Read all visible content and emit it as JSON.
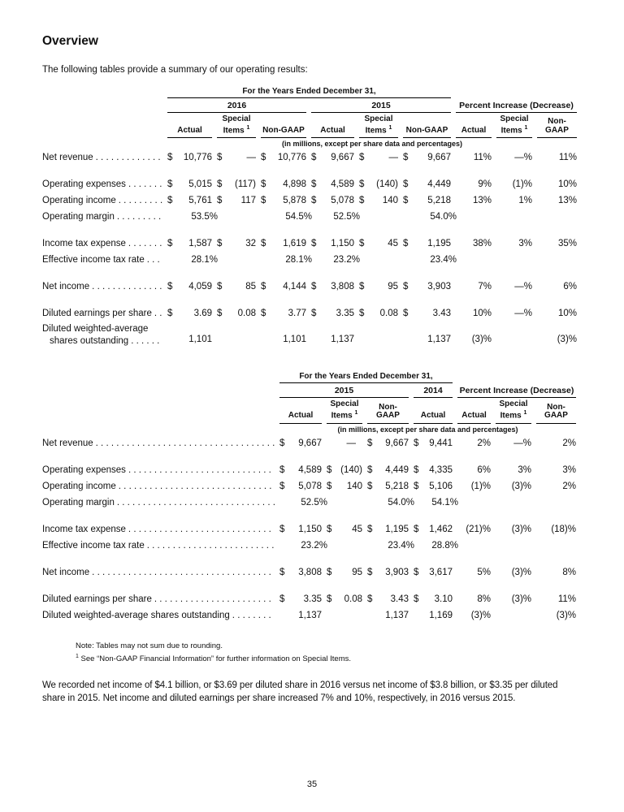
{
  "page": {
    "heading": "Overview",
    "intro": "The following tables provide a summary of our operating results:",
    "note_line1": "Note: Tables may not sum due to rounding.",
    "note2_sup": "1",
    "note_line2": "See “Non-GAAP Financial Information” for further information on Special Items.",
    "paragraph": "We recorded net income of $4.1 billion, or $3.69 per diluted share in 2016 versus net income of $3.8 billion, or $3.35 per diluted share in 2015.  Net income and diluted earnings per share increased 7% and 10%, respectively, in 2016 versus 2015.",
    "page_number": "35"
  },
  "table1": {
    "span_header": "For the Years Ended December 31,",
    "groups": [
      "2016",
      "2015",
      "Percent Increase (Decrease)"
    ],
    "col_headers": [
      {
        "lines": [
          "Actual"
        ]
      },
      {
        "lines": [
          "Special",
          "Items"
        ],
        "sup": "1"
      },
      {
        "lines": [
          "Non-GAAP"
        ]
      },
      {
        "lines": [
          "Actual"
        ]
      },
      {
        "lines": [
          "Special",
          "Items"
        ],
        "sup": "1"
      },
      {
        "lines": [
          "Non-GAAP"
        ]
      },
      {
        "lines": [
          "Actual"
        ]
      },
      {
        "lines": [
          "Special",
          "Items"
        ],
        "sup": "1"
      },
      {
        "lines": [
          "Non-",
          "GAAP"
        ]
      }
    ],
    "units_note": "(in millions, except per share data and percentages)",
    "rows": [
      {
        "label": "Net revenue",
        "cells": [
          [
            "$",
            "10,776"
          ],
          [
            "$",
            "—"
          ],
          [
            "$",
            "10,776"
          ],
          [
            "$",
            "9,667"
          ],
          [
            "$",
            "—"
          ],
          [
            "$",
            "9,667"
          ],
          [
            "",
            "11%"
          ],
          [
            "",
            "—%"
          ],
          [
            "",
            "11%"
          ]
        ]
      },
      {
        "label": "Operating expenses",
        "gap": true,
        "cells": [
          [
            "$",
            "5,015"
          ],
          [
            "$",
            "(117)"
          ],
          [
            "$",
            "4,898"
          ],
          [
            "$",
            "4,589"
          ],
          [
            "$",
            "(140)"
          ],
          [
            "$",
            "4,449"
          ],
          [
            "",
            "9%"
          ],
          [
            "",
            "(1)%"
          ],
          [
            "",
            "10%"
          ]
        ]
      },
      {
        "label": "Operating income",
        "cells": [
          [
            "$",
            "5,761"
          ],
          [
            "$",
            "117"
          ],
          [
            "$",
            "5,878"
          ],
          [
            "$",
            "5,078"
          ],
          [
            "$",
            "140"
          ],
          [
            "$",
            "5,218"
          ],
          [
            "",
            "13%"
          ],
          [
            "",
            "1%"
          ],
          [
            "",
            "13%"
          ]
        ]
      },
      {
        "label": "Operating margin",
        "cells": [
          [
            "",
            "53.5%"
          ],
          null,
          [
            "",
            "54.5%"
          ],
          [
            "",
            "52.5%"
          ],
          null,
          [
            "",
            "54.0%"
          ],
          null,
          null,
          null
        ]
      },
      {
        "label": "Income tax expense",
        "gap": true,
        "cells": [
          [
            "$",
            "1,587"
          ],
          [
            "$",
            "32"
          ],
          [
            "$",
            "1,619"
          ],
          [
            "$",
            "1,150"
          ],
          [
            "$",
            "45"
          ],
          [
            "$",
            "1,195"
          ],
          [
            "",
            "38%"
          ],
          [
            "",
            "3%"
          ],
          [
            "",
            "35%"
          ]
        ]
      },
      {
        "label": "Effective income tax rate",
        "cells": [
          [
            "",
            "28.1%"
          ],
          null,
          [
            "",
            "28.1%"
          ],
          [
            "",
            "23.2%"
          ],
          null,
          [
            "",
            "23.4%"
          ],
          null,
          null,
          null
        ]
      },
      {
        "label": "Net income",
        "gap": true,
        "cells": [
          [
            "$",
            "4,059"
          ],
          [
            "$",
            "85"
          ],
          [
            "$",
            "4,144"
          ],
          [
            "$",
            "3,808"
          ],
          [
            "$",
            "95"
          ],
          [
            "$",
            "3,903"
          ],
          [
            "",
            "7%"
          ],
          [
            "",
            "—%"
          ],
          [
            "",
            "6%"
          ]
        ]
      },
      {
        "label": "Diluted earnings per share",
        "gap": true,
        "cells": [
          [
            "$",
            "3.69"
          ],
          [
            "$",
            "0.08"
          ],
          [
            "$",
            "3.77"
          ],
          [
            "$",
            "3.35"
          ],
          [
            "$",
            "0.08"
          ],
          [
            "$",
            "3.43"
          ],
          [
            "",
            "10%"
          ],
          [
            "",
            "—%"
          ],
          [
            "",
            "10%"
          ]
        ]
      },
      {
        "label": "Diluted weighted-average",
        "label2": "shares outstanding",
        "cells": [
          [
            "",
            "1,101"
          ],
          null,
          [
            "",
            "1,101"
          ],
          [
            "",
            "1,137"
          ],
          null,
          [
            "",
            "1,137"
          ],
          [
            "",
            "(3)%"
          ],
          null,
          [
            "",
            "(3)%"
          ]
        ]
      }
    ]
  },
  "table2": {
    "span_header": "For the Years Ended December 31,",
    "groups": [
      "2015",
      "2014",
      "Percent Increase (Decrease)"
    ],
    "col_headers": [
      {
        "lines": [
          "Actual"
        ]
      },
      {
        "lines": [
          "Special",
          "Items"
        ],
        "sup": "1"
      },
      {
        "lines": [
          "Non-GAAP"
        ]
      },
      {
        "lines": [
          "Actual"
        ]
      },
      {
        "lines": [
          "Actual"
        ]
      },
      {
        "lines": [
          "Special",
          "Items"
        ],
        "sup": "1"
      },
      {
        "lines": [
          "Non-",
          "GAAP"
        ]
      }
    ],
    "units_note": "(in millions, except per share data and percentages)",
    "rows": [
      {
        "label": "Net revenue",
        "cells": [
          [
            "$",
            "9,667"
          ],
          [
            "",
            "—"
          ],
          [
            "$",
            "9,667"
          ],
          [
            "$",
            "9,441"
          ],
          [
            "",
            "2%"
          ],
          [
            "",
            "—%"
          ],
          [
            "",
            "2%"
          ]
        ]
      },
      {
        "label": "Operating expenses",
        "gap": true,
        "cells": [
          [
            "$",
            "4,589"
          ],
          [
            "$",
            "(140)"
          ],
          [
            "$",
            "4,449"
          ],
          [
            "$",
            "4,335"
          ],
          [
            "",
            "6%"
          ],
          [
            "",
            "3%"
          ],
          [
            "",
            "3%"
          ]
        ]
      },
      {
        "label": "Operating income",
        "cells": [
          [
            "$",
            "5,078"
          ],
          [
            "$",
            "140"
          ],
          [
            "$",
            "5,218"
          ],
          [
            "$",
            "5,106"
          ],
          [
            "",
            "(1)%"
          ],
          [
            "",
            "(3)%"
          ],
          [
            "",
            "2%"
          ]
        ]
      },
      {
        "label": "Operating margin",
        "cells": [
          [
            "",
            "52.5%"
          ],
          null,
          [
            "",
            "54.0%"
          ],
          [
            "",
            "54.1%"
          ],
          null,
          null,
          null
        ]
      },
      {
        "label": "Income tax expense",
        "gap": true,
        "cells": [
          [
            "$",
            "1,150"
          ],
          [
            "$",
            "45"
          ],
          [
            "$",
            "1,195"
          ],
          [
            "$",
            "1,462"
          ],
          [
            "",
            "(21)%"
          ],
          [
            "",
            "(3)%"
          ],
          [
            "",
            "(18)%"
          ]
        ]
      },
      {
        "label": "Effective income tax rate",
        "cells": [
          [
            "",
            "23.2%"
          ],
          null,
          [
            "",
            "23.4%"
          ],
          [
            "",
            "28.8%"
          ],
          null,
          null,
          null
        ]
      },
      {
        "label": "Net income",
        "gap": true,
        "cells": [
          [
            "$",
            "3,808"
          ],
          [
            "$",
            "95"
          ],
          [
            "$",
            "3,903"
          ],
          [
            "$",
            "3,617"
          ],
          [
            "",
            "5%"
          ],
          [
            "",
            "(3)%"
          ],
          [
            "",
            "8%"
          ]
        ]
      },
      {
        "label": "Diluted earnings per share",
        "gap": true,
        "cells": [
          [
            "$",
            "3.35"
          ],
          [
            "$",
            "0.08"
          ],
          [
            "$",
            "3.43"
          ],
          [
            "$",
            "3.10"
          ],
          [
            "",
            "8%"
          ],
          [
            "",
            "(3)%"
          ],
          [
            "",
            "11%"
          ]
        ]
      },
      {
        "label": "Diluted weighted-average shares outstanding",
        "cells": [
          [
            "",
            "1,137"
          ],
          null,
          [
            "",
            "1,137"
          ],
          [
            "",
            "1,169"
          ],
          [
            "",
            "(3)%"
          ],
          null,
          [
            "",
            "(3)%"
          ]
        ]
      }
    ]
  }
}
